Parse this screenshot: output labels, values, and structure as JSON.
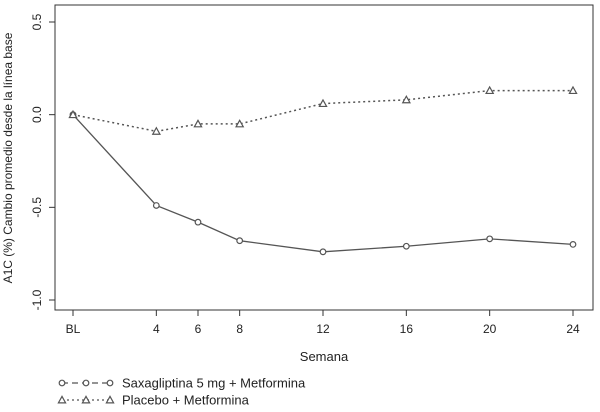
{
  "chart_data": {
    "type": "line",
    "title": "",
    "xlabel": "Semana",
    "ylabel": "A1C (%) Cambio promedio desde la línea base",
    "categories": [
      "BL",
      "4",
      "6",
      "8",
      "12",
      "16",
      "20",
      "24"
    ],
    "x": [
      0,
      4,
      6,
      8,
      12,
      16,
      20,
      24
    ],
    "ylim": [
      -1.0,
      0.5
    ],
    "yticks": [
      0.5,
      0.0,
      -0.5,
      -1.0
    ],
    "ytick_labels": [
      "0.5",
      "0.0",
      "-0.5",
      "-1.0"
    ],
    "grid": false,
    "legend_position": "bottom-left, below plot",
    "series": [
      {
        "name": "Saxagliptina 5 mg + Metformina",
        "values": [
          0.0,
          -0.49,
          -0.58,
          -0.68,
          -0.74,
          -0.71,
          -0.67,
          -0.7
        ],
        "marker": "circle",
        "line": "solid",
        "color": "#555555"
      },
      {
        "name": "Placebo + Metformina",
        "values": [
          0.0,
          -0.09,
          -0.05,
          -0.05,
          0.06,
          0.08,
          0.13,
          0.13
        ],
        "marker": "triangle",
        "line": "dotted",
        "color": "#555555"
      }
    ]
  }
}
